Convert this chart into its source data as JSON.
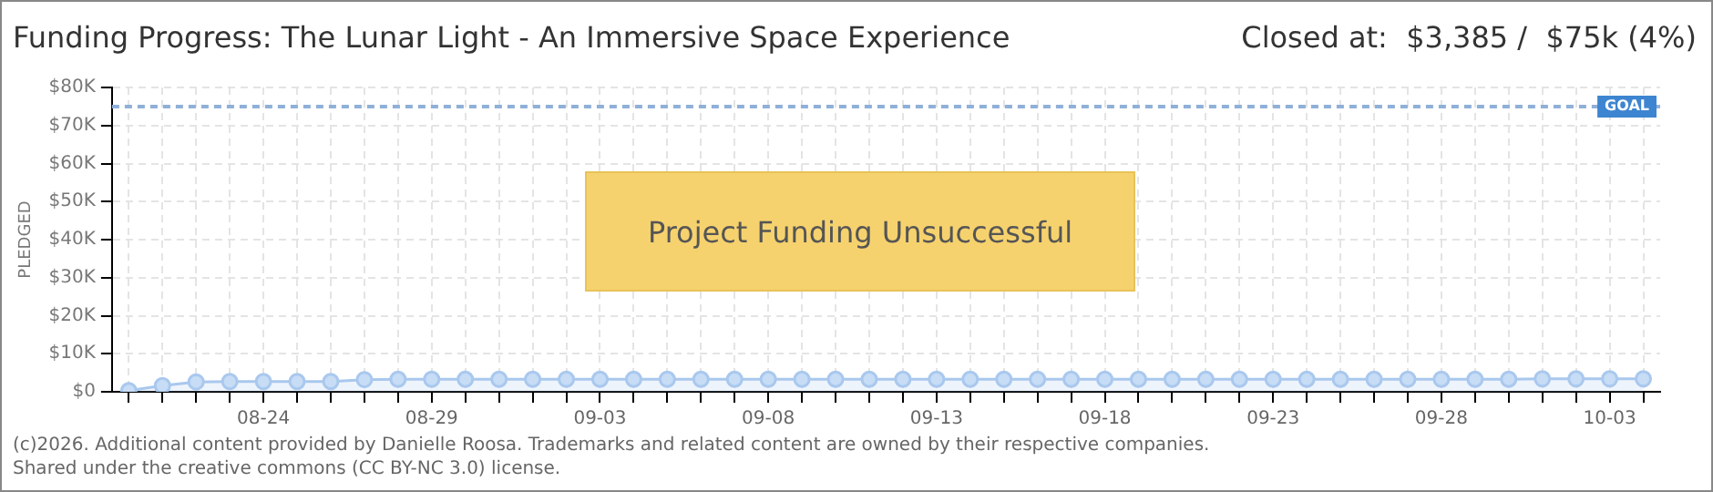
{
  "chart_data": {
    "type": "area",
    "title": "Funding Progress: The Lunar Light - An Immersive Space Experience",
    "subtitle": "Closed at:  $3,385 /  $75k (4%)",
    "ylabel": "PLEDGED",
    "categories": [
      null,
      null,
      null,
      null,
      "08-24",
      null,
      null,
      null,
      null,
      "08-29",
      null,
      null,
      null,
      null,
      "09-03",
      null,
      null,
      null,
      null,
      "09-08",
      null,
      null,
      null,
      null,
      "09-13",
      null,
      null,
      null,
      null,
      "09-18",
      null,
      null,
      null,
      null,
      "09-23",
      null,
      null,
      null,
      null,
      "09-28",
      null,
      null,
      null,
      null,
      "10-03",
      null
    ],
    "series": [
      {
        "color": "#a9c8ee",
        "values": [
          300,
          1600,
          2600,
          2700,
          2700,
          2700,
          2700,
          3200,
          3300,
          3300,
          3300,
          3300,
          3300,
          3300,
          3300,
          3300,
          3300,
          3300,
          3300,
          3300,
          3300,
          3300,
          3300,
          3300,
          3300,
          3300,
          3300,
          3300,
          3300,
          3300,
          3300,
          3300,
          3300,
          3300,
          3300,
          3300,
          3300,
          3300,
          3300,
          3300,
          3300,
          3300,
          3400,
          3400,
          3400,
          3400
        ]
      }
    ],
    "ylim": [
      0,
      80000
    ],
    "yticks": [
      {
        "value": 0,
        "label": "$0"
      },
      {
        "value": 10000,
        "label": "$10K"
      },
      {
        "value": 20000,
        "label": "$20K"
      },
      {
        "value": 30000,
        "label": "$30K"
      },
      {
        "value": 40000,
        "label": "$40K"
      },
      {
        "value": 50000,
        "label": "$50K"
      },
      {
        "value": 60000,
        "label": "$60K"
      },
      {
        "value": 70000,
        "label": "$70K"
      },
      {
        "value": 80000,
        "label": "$80K"
      }
    ],
    "ref_lines": [
      {
        "axis": "y",
        "value": 75000,
        "label": "GOAL",
        "color": "#8fb0d8",
        "line_style": "dashed"
      }
    ],
    "annotations": [
      "Project Funding Unsuccessful",
      "(c)2026. Additional content provided by Danielle Roosa. Trademarks and related content are owned by their respective companies.",
      "Shared under the creative commons (CC BY-NC 3.0) license."
    ],
    "grid": true,
    "marker": "circle",
    "legend": false
  }
}
